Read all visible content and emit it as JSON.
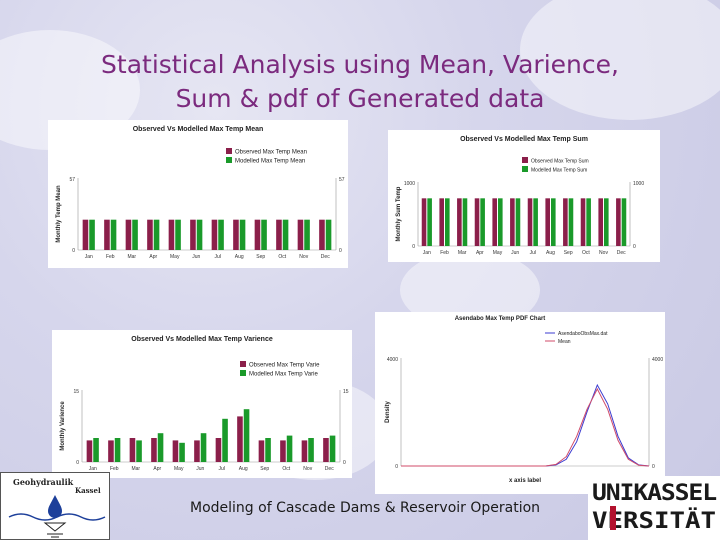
{
  "slide": {
    "title_line1": "Statistical Analysis using Mean, Varience,",
    "title_line2": "Sum & pdf of Generated data",
    "footer": "Modeling of Cascade Dams & Reservoir Operation",
    "logo_left_text1": "Geohydraulik",
    "logo_left_text2": "Kassel",
    "logo_right_text1": "UNIKASSEL",
    "logo_right_text2": "VERSITÄT",
    "colors": {
      "title": "#7b2a7e",
      "observed": "#8b1f4a",
      "modelled": "#1a9a2a",
      "pdf_observed": "#3b3bd0",
      "pdf_mean": "#d04b6a"
    }
  },
  "chart_data": [
    {
      "type": "bar",
      "title": "Observed Vs Modelled Max Temp Mean",
      "ylabel": "Monthly Temp Mean",
      "xlabel": "",
      "ylim": [
        0,
        57
      ],
      "ytick_labels": [
        "0",
        "57"
      ],
      "right_ytick_labels": [
        "0",
        "57"
      ],
      "categories": [
        "Jan",
        "Feb",
        "Mar",
        "Apr",
        "May",
        "Jun",
        "Jul",
        "Aug",
        "Sep",
        "Oct",
        "Nov",
        "Dec"
      ],
      "series": [
        {
          "name": "Observed Max Temp Mean",
          "values": [
            24,
            24,
            24,
            24,
            24,
            24,
            24,
            24,
            24,
            24,
            24,
            24
          ]
        },
        {
          "name": "Modelled Max Temp Mean",
          "values": [
            24,
            24,
            24,
            24,
            24,
            24,
            24,
            24,
            24,
            24,
            24,
            24
          ]
        }
      ],
      "legend": "top-right"
    },
    {
      "type": "bar",
      "title": "Observed Vs Modelled Max Temp Sum",
      "ylabel": "Monthly Sum Temp",
      "xlabel": "",
      "ylim": [
        0,
        1000
      ],
      "ytick_labels": [
        "0",
        "1000"
      ],
      "right_ytick_labels": [
        "0",
        "1000"
      ],
      "categories": [
        "Jan",
        "Feb",
        "Mar",
        "Apr",
        "May",
        "Jun",
        "Jul",
        "Aug",
        "Sep",
        "Oct",
        "Nov",
        "Dec"
      ],
      "series": [
        {
          "name": "Observed Max Temp Sum",
          "values": [
            745,
            745,
            745,
            745,
            745,
            745,
            745,
            745,
            745,
            745,
            745,
            745
          ]
        },
        {
          "name": "Modelled Max Temp Sum",
          "values": [
            745,
            745,
            745,
            745,
            745,
            745,
            745,
            745,
            745,
            745,
            745,
            745
          ]
        }
      ],
      "legend": "top-right"
    },
    {
      "type": "bar",
      "title": "Observed Vs Modelled Max Temp Varience",
      "ylabel": "Monthly Varience",
      "xlabel": "",
      "ylim": [
        0,
        15
      ],
      "ytick_labels": [
        "0",
        "15"
      ],
      "right_ytick_labels": [
        "0",
        "15"
      ],
      "categories": [
        "Jan",
        "Feb",
        "Mar",
        "Apr",
        "May",
        "Jun",
        "Jul",
        "Aug",
        "Sep",
        "Oct",
        "Nov",
        "Dec"
      ],
      "series": [
        {
          "name": "Observed Max Temp Varie",
          "values": [
            4.5,
            4.5,
            5.0,
            5.0,
            4.5,
            4.5,
            5.0,
            9.5,
            4.5,
            4.5,
            4.5,
            5.0
          ]
        },
        {
          "name": "Modelled Max Temp Varie",
          "values": [
            5.0,
            5.0,
            4.5,
            6.0,
            4.0,
            6.0,
            9.0,
            11.0,
            5.0,
            5.5,
            5.0,
            5.5
          ]
        }
      ],
      "legend": "top-right"
    },
    {
      "type": "line",
      "title": "Asendabo Max Temp PDF Chart",
      "ylabel": "Density",
      "xlabel": "x axis label",
      "ylim": [
        0,
        4000
      ],
      "ytick_labels": [
        "0",
        "4000"
      ],
      "right_ytick_labels": [
        "0",
        "4000"
      ],
      "x": [
        0,
        1,
        2,
        3,
        4,
        5,
        6,
        7,
        8,
        9,
        10,
        11,
        12,
        13,
        14,
        15,
        16,
        17,
        18,
        19,
        20,
        21,
        22,
        23,
        24
      ],
      "series": [
        {
          "name": "AsendaboObsMax.dat",
          "values": [
            0,
            0,
            0,
            0,
            0,
            0,
            0,
            0,
            0,
            0,
            0,
            0,
            0,
            0,
            0,
            40,
            250,
            900,
            2000,
            3000,
            2300,
            1100,
            300,
            40,
            0
          ]
        },
        {
          "name": "Mean",
          "values": [
            0,
            0,
            0,
            0,
            0,
            0,
            0,
            0,
            0,
            0,
            0,
            0,
            0,
            0,
            0,
            60,
            350,
            1100,
            2100,
            2850,
            2100,
            950,
            250,
            30,
            0
          ]
        }
      ],
      "legend": "top-right"
    }
  ]
}
